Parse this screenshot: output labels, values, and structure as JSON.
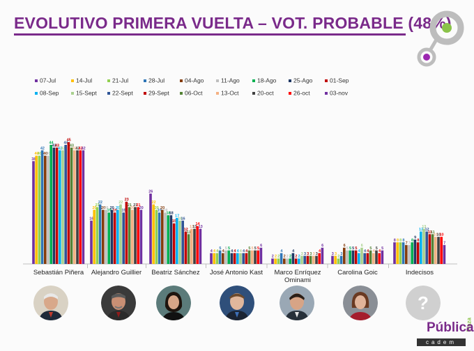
{
  "title": "EVOLUTIVO PRIMERA VUELTA – VOT. PROBABLE (48%)",
  "colors": {
    "title": "#7a2a8a",
    "logo_green": "#8bc34a",
    "logo_purple": "#9c27b0",
    "logo_gray": "#bdbdbd"
  },
  "brand": {
    "publica": "Pública",
    "plaza": "Plaza",
    "cadem": "cadem"
  },
  "chart_data": {
    "type": "bar",
    "title": "",
    "xlabel": "",
    "ylabel": "",
    "ylim": [
      0,
      50
    ],
    "grid": false,
    "legend_position": "top",
    "categories": [
      "Sebastián Piñera",
      "Alejandro Guillier",
      "Beatriz Sánchez",
      "José Antonio Kast",
      "Marco Enríquez Ominami",
      "Carolina Goic",
      "Indecisos"
    ],
    "series": [
      {
        "name": "07-Jul",
        "color": "#7030a0",
        "values": [
          38,
          16,
          26,
          4,
          2,
          3,
          8
        ]
      },
      {
        "name": "14-Jul",
        "color": "#ffc000",
        "values": [
          40,
          20,
          22,
          4,
          2,
          3,
          8
        ]
      },
      {
        "name": "21-Jul",
        "color": "#92d050",
        "values": [
          40,
          21,
          20,
          4,
          2,
          2,
          8
        ]
      },
      {
        "name": "28-Jul",
        "color": "#2e75b6",
        "values": [
          42,
          22,
          19,
          5,
          4,
          3,
          8
        ]
      },
      {
        "name": "04-Ago",
        "color": "#843c0c",
        "values": [
          40,
          20,
          20,
          4,
          2,
          6,
          7
        ]
      },
      {
        "name": "11-Ago",
        "color": "#bfbfbf",
        "values": [
          40,
          20,
          19,
          5,
          2,
          5,
          7
        ]
      },
      {
        "name": "18-Ago",
        "color": "#00b050",
        "values": [
          44,
          19,
          18,
          5,
          2,
          5,
          8
        ]
      },
      {
        "name": "25-Ago",
        "color": "#1f3864",
        "values": [
          43,
          20,
          18,
          4,
          4,
          5,
          9
        ]
      },
      {
        "name": "01-Sep",
        "color": "#c00000",
        "values": [
          43,
          19,
          15,
          4,
          2,
          5,
          8
        ]
      },
      {
        "name": "08-Sep",
        "color": "#00b0f0",
        "values": [
          42,
          20,
          17,
          4,
          2,
          4,
          12
        ]
      },
      {
        "name": "15-Sept",
        "color": "#a9d18e",
        "values": [
          42,
          22,
          16,
          4,
          3,
          6,
          13
        ]
      },
      {
        "name": "22-Sept",
        "color": "#2f5597",
        "values": [
          44,
          19,
          16,
          4,
          3,
          4,
          12
        ]
      },
      {
        "name": "29-Sept",
        "color": "#c00000",
        "values": [
          45,
          23,
          12,
          4,
          3,
          4,
          11
        ]
      },
      {
        "name": "06-Oct",
        "color": "#548235",
        "values": [
          43,
          21,
          11,
          5,
          3,
          5,
          11
        ]
      },
      {
        "name": "13-Oct",
        "color": "#f4b183",
        "values": [
          42,
          20,
          13,
          5,
          3,
          4,
          10
        ]
      },
      {
        "name": "20-oct",
        "color": "#404040",
        "values": [
          42,
          21,
          13,
          5,
          3,
          5,
          10
        ]
      },
      {
        "name": "26-oct",
        "color": "#ff0000",
        "values": [
          42,
          21,
          14,
          5,
          4,
          4,
          10
        ]
      },
      {
        "name": "03-nov",
        "color": "#7030a0",
        "values": [
          42,
          20,
          13,
          6,
          6,
          5,
          7
        ]
      }
    ]
  }
}
